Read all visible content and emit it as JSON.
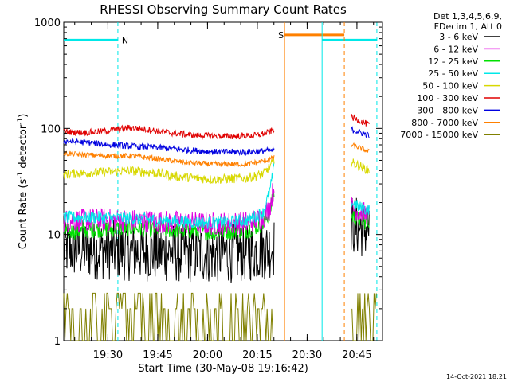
{
  "chart_data": {
    "type": "line",
    "title": "RHESSI Observing Summary Count Rates",
    "xlabel": "Start Time (30-May-08 19:16:42)",
    "ylabel_main": "Count Rate (s",
    "ylabel_sup1": "-1",
    "ylabel_mid": " detector",
    "ylabel_sup2": "-1",
    "ylabel_end": ")",
    "y_scale": "log",
    "ylim": [
      1,
      1000
    ],
    "xlim_minutes": [
      0,
      96
    ],
    "x_ticks": [
      {
        "label": "19:30",
        "minute": 13.3
      },
      {
        "label": "19:45",
        "minute": 28.3
      },
      {
        "label": "20:00",
        "minute": 43.3
      },
      {
        "label": "20:15",
        "minute": 58.3
      },
      {
        "label": "20:30",
        "minute": 73.3
      },
      {
        "label": "20:45",
        "minute": 88.3
      }
    ],
    "y_ticks": [
      {
        "label": "1",
        "value": 1
      },
      {
        "label": "10",
        "value": 10
      },
      {
        "label": "100",
        "value": 100
      },
      {
        "label": "1000",
        "value": 1000
      }
    ],
    "legend_header": [
      "Det 1,3,4,5,6,9,",
      "FDecim 1, Att 0"
    ],
    "data_gap_minutes": [
      63.5,
      86.5
    ],
    "series": [
      {
        "name": "3 - 6 keV",
        "color": "#000000",
        "noise": 0.22,
        "points": [
          [
            0,
            7.4
          ],
          [
            10,
            7.2
          ],
          [
            20,
            7.0
          ],
          [
            30,
            6.8
          ],
          [
            45,
            6.6
          ],
          [
            55,
            6.8
          ],
          [
            61,
            7.2
          ],
          [
            63,
            7.6
          ],
          [
            86.5,
            12.5
          ],
          [
            90,
            11.5
          ],
          [
            92,
            11.0
          ]
        ]
      },
      {
        "name": "6 - 12 keV",
        "color": "#e000e0",
        "noise": 0.11,
        "points": [
          [
            0,
            13.5
          ],
          [
            10,
            13.8
          ],
          [
            20,
            13.6
          ],
          [
            30,
            13.2
          ],
          [
            45,
            12.6
          ],
          [
            55,
            13.0
          ],
          [
            60,
            14.5
          ],
          [
            62,
            18
          ],
          [
            63.3,
            28
          ],
          [
            63.8,
            40
          ],
          [
            86.5,
            18
          ],
          [
            90,
            16
          ],
          [
            92,
            15
          ]
        ]
      },
      {
        "name": "12 - 25 keV",
        "color": "#00e000",
        "noise": 0.08,
        "points": [
          [
            0,
            10.5
          ],
          [
            10,
            11.2
          ],
          [
            20,
            11.5
          ],
          [
            30,
            11.2
          ],
          [
            45,
            10.5
          ],
          [
            55,
            11.0
          ],
          [
            60,
            12.5
          ],
          [
            62,
            16
          ],
          [
            63.3,
            24
          ],
          [
            63.8,
            36
          ],
          [
            86.5,
            15
          ],
          [
            90,
            13.5
          ],
          [
            92,
            13
          ]
        ]
      },
      {
        "name": "25 - 50 keV",
        "color": "#00e8e8",
        "noise": 0.06,
        "points": [
          [
            0,
            14.5
          ],
          [
            10,
            14.5
          ],
          [
            20,
            14.2
          ],
          [
            30,
            13.6
          ],
          [
            45,
            12.8
          ],
          [
            55,
            13.6
          ],
          [
            60,
            16
          ],
          [
            62,
            25
          ],
          [
            63.3,
            42
          ],
          [
            63.8,
            50
          ],
          [
            86.5,
            20
          ],
          [
            90,
            17.5
          ],
          [
            92,
            17
          ]
        ]
      },
      {
        "name": "50 - 100 keV",
        "color": "#d8d800",
        "noise": 0.045,
        "points": [
          [
            0,
            37
          ],
          [
            6,
            38
          ],
          [
            14,
            39
          ],
          [
            20,
            40
          ],
          [
            28,
            38
          ],
          [
            35,
            35
          ],
          [
            45,
            33
          ],
          [
            55,
            34
          ],
          [
            60,
            37
          ],
          [
            62,
            43
          ],
          [
            63.5,
            52
          ],
          [
            86.5,
            48
          ],
          [
            90,
            43
          ],
          [
            92,
            40
          ]
        ]
      },
      {
        "name": "100 - 300 keV",
        "color": "#e00000",
        "noise": 0.03,
        "points": [
          [
            0,
            93
          ],
          [
            6,
            91
          ],
          [
            12,
            94
          ],
          [
            20,
            102
          ],
          [
            26,
            97
          ],
          [
            32,
            91
          ],
          [
            40,
            86
          ],
          [
            50,
            84
          ],
          [
            58,
            86
          ],
          [
            62,
            92
          ],
          [
            63.5,
            100
          ],
          [
            86.5,
            128
          ],
          [
            90,
            115
          ],
          [
            92,
            108
          ]
        ]
      },
      {
        "name": "300 - 800 keV",
        "color": "#0000e0",
        "noise": 0.03,
        "points": [
          [
            0,
            76
          ],
          [
            8,
            73
          ],
          [
            14,
            70
          ],
          [
            20,
            68
          ],
          [
            28,
            66
          ],
          [
            36,
            63
          ],
          [
            45,
            60
          ],
          [
            55,
            60
          ],
          [
            63.5,
            62
          ],
          [
            86.5,
            98
          ],
          [
            90,
            90
          ],
          [
            92,
            86
          ]
        ]
      },
      {
        "name": "800 - 7000 keV",
        "color": "#ff8000",
        "noise": 0.025,
        "points": [
          [
            0,
            58
          ],
          [
            8,
            56
          ],
          [
            14,
            55
          ],
          [
            20,
            55
          ],
          [
            28,
            52
          ],
          [
            36,
            48
          ],
          [
            45,
            46
          ],
          [
            55,
            46
          ],
          [
            60,
            49
          ],
          [
            63.5,
            53
          ],
          [
            86.5,
            70
          ],
          [
            90,
            64
          ],
          [
            92,
            60
          ]
        ]
      },
      {
        "name": "7000 - 15000 keV",
        "color": "#808000",
        "noise": 0,
        "points": []
      }
    ],
    "annotations": [
      {
        "kind": "bar",
        "label": "N",
        "color": "#00e8e8",
        "x0": 0,
        "x1": 16.3,
        "y": 680
      },
      {
        "kind": "bar",
        "label": "S",
        "color": "#ff8000",
        "x0": 66.5,
        "x1": 84.5,
        "y": 760
      },
      {
        "kind": "bar",
        "label": "",
        "color": "#00e8e8",
        "x0": 77.8,
        "x1": 94.3,
        "y": 680
      },
      {
        "kind": "vline",
        "color": "#00e8e8",
        "style": "dashed",
        "x": 16.3
      },
      {
        "kind": "vline",
        "color": "#ff8000",
        "style": "solid",
        "x": 66.5
      },
      {
        "kind": "vline",
        "color": "#00e8e8",
        "style": "solid",
        "x": 77.8
      },
      {
        "kind": "vline",
        "color": "#ff8000",
        "style": "dashed",
        "x": 84.5
      },
      {
        "kind": "vline",
        "color": "#00e8e8",
        "style": "dashed",
        "x": 94.3
      }
    ],
    "grid": false,
    "legend_placement": "right"
  },
  "footer_date": "14-Oct-2021 18:21"
}
